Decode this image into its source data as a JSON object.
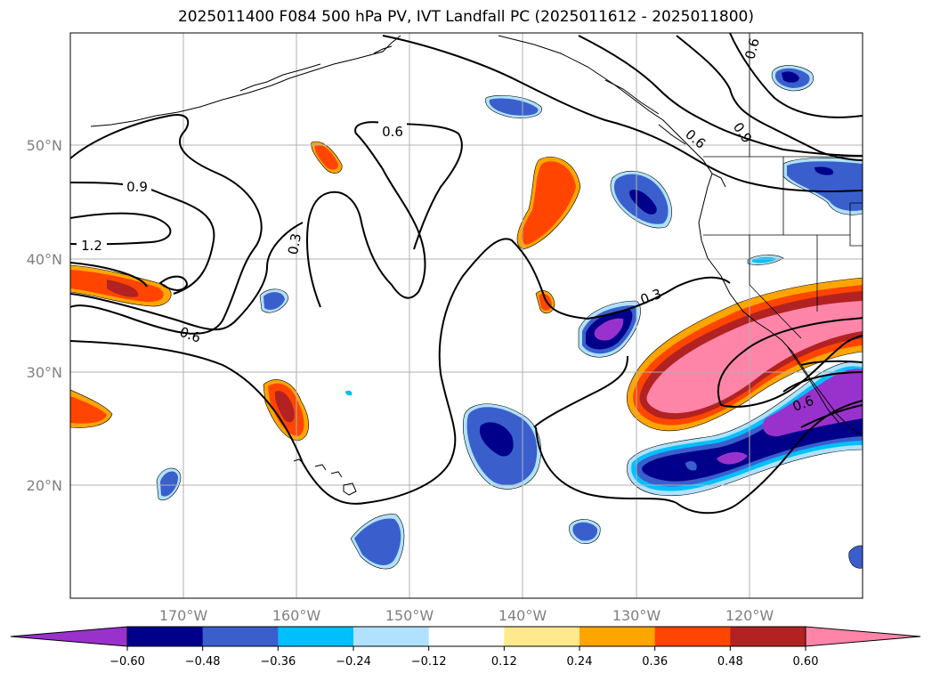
{
  "title": "2025011400 F084 500 hPa PV, IVT Landfall PC (2025011612 - 2025011800)",
  "lat_labels": [
    "50°N",
    "40°N",
    "30°N",
    "20°N"
  ],
  "lon_labels": [
    "170°W",
    "160°W",
    "150°W",
    "140°W",
    "130°W",
    "120°W"
  ],
  "contour_labels": [
    "0.6",
    "0.9",
    "1.2",
    "0.3",
    "0.6",
    "0.3",
    "0.6",
    "0.9",
    "0.6",
    "0.6"
  ],
  "colorbar": {
    "ticks": [
      "−0.60",
      "−0.48",
      "−0.36",
      "−0.24",
      "−0.12",
      "0.12",
      "0.24",
      "0.36",
      "0.48",
      "0.60"
    ],
    "colors": [
      "#9932CC",
      "#00008B",
      "#3A5FCD",
      "#00BFFF",
      "#B0E2FF",
      "#FFFFFF",
      "#FFE98C",
      "#FFA500",
      "#FF4500",
      "#B22222",
      "#FF85A8"
    ]
  },
  "colors": {
    "coast": "#000000",
    "gridline": "#b0b0b0",
    "contour": "#000000"
  }
}
